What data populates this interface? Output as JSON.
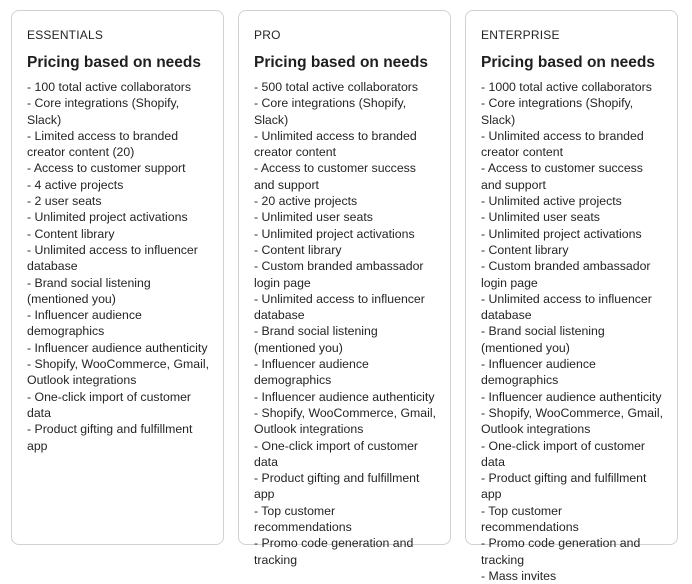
{
  "cards": [
    {
      "plan": "ESSENTIALS",
      "heading": "Pricing based on needs",
      "features": [
        "- 100 total active collaborators",
        "- Core integrations (Shopify, Slack)",
        "- Limited access to branded creator content (20)",
        "- Access to customer support",
        "- 4 active projects",
        "- 2 user seats",
        "- Unlimited project activations",
        "- Content library",
        "- Unlimited access to influencer database",
        "- Brand social listening (mentioned you)",
        "- Influencer audience demographics",
        "- Influencer audience authenticity",
        "- Shopify, WooCommerce, Gmail, Outlook integrations",
        "- One-click import of customer data",
        "- Product gifting and fulfillment app"
      ]
    },
    {
      "plan": "PRO",
      "heading": "Pricing based on needs",
      "features": [
        "- 500 total active collaborators",
        "- Core integrations (Shopify, Slack)",
        "- Unlimited access to branded creator content",
        "- Access to customer success and support",
        "- 20 active projects",
        "- Unlimited user seats",
        "- Unlimited project activations",
        "- Content library",
        "- Custom branded ambassador login page",
        "- Unlimited access to influencer database",
        "- Brand social listening (mentioned you)",
        "- Influencer audience demographics",
        "- Influencer audience authenticity",
        "- Shopify, WooCommerce, Gmail, Outlook integrations",
        "- One-click import of customer data",
        "- Product gifting and fulfillment app",
        "- Top customer recommendations",
        "- Promo code generation and tracking"
      ]
    },
    {
      "plan": "ENTERPRISE",
      "heading": "Pricing based on needs",
      "features": [
        "- 1000 total active collaborators",
        "- Core integrations (Shopify, Slack)",
        "- Unlimited access to branded creator content",
        "- Access to customer success and support",
        "- Unlimited active projects",
        "- Unlimited user seats",
        "- Unlimited project activations",
        "- Content library",
        "- Custom branded ambassador login page",
        "- Unlimited access to influencer database",
        "- Brand social listening (mentioned you)",
        "- Influencer audience demographics",
        "- Influencer audience authenticity",
        "- Shopify, WooCommerce, Gmail, Outlook integrations",
        "- One-click import of customer data",
        "- Product gifting and fulfillment app",
        "- Top customer recommendations",
        "- Promo code generation and tracking",
        "- Mass invites"
      ]
    }
  ]
}
